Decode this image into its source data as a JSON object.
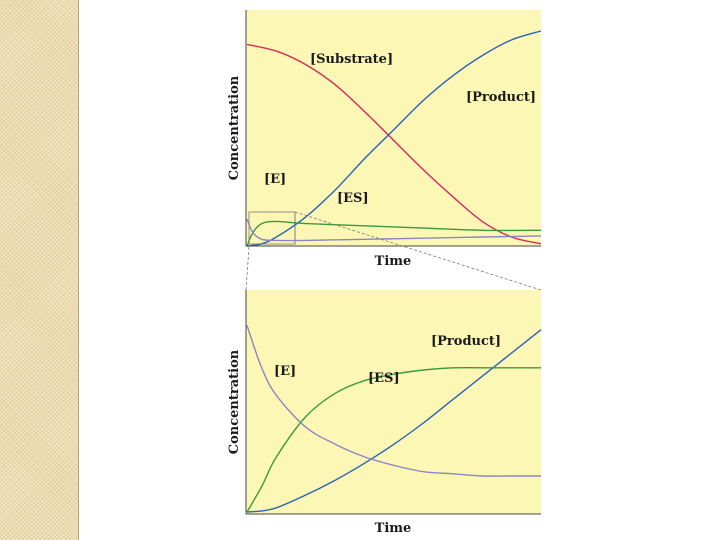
{
  "colors": {
    "panel_bg": "#fdf7b6",
    "substrate": "#d42a5c",
    "product": "#2a62b8",
    "es": "#3a9a3a",
    "e": "#8a86c4",
    "axis": "#444444",
    "strip": "#ecdcae"
  },
  "chart_data": [
    {
      "type": "line",
      "xlabel": "Time",
      "ylabel": "Concentration",
      "series": [
        {
          "name": "[Substrate]",
          "color_key": "substrate",
          "x": [
            0,
            0.1,
            0.2,
            0.3,
            0.4,
            0.5,
            0.6,
            0.7,
            0.8,
            0.9,
            1.0
          ],
          "y": [
            0.9,
            0.87,
            0.81,
            0.72,
            0.6,
            0.47,
            0.34,
            0.22,
            0.11,
            0.04,
            0.01
          ]
        },
        {
          "name": "[Product]",
          "color_key": "product",
          "x": [
            0,
            0.05,
            0.1,
            0.2,
            0.3,
            0.4,
            0.5,
            0.6,
            0.7,
            0.8,
            0.9,
            1.0
          ],
          "y": [
            0.0,
            0.01,
            0.04,
            0.13,
            0.25,
            0.39,
            0.52,
            0.65,
            0.76,
            0.85,
            0.92,
            0.96
          ]
        },
        {
          "name": "[ES]",
          "color_key": "es",
          "x": [
            0,
            0.02,
            0.05,
            0.1,
            0.2,
            0.4,
            0.6,
            0.8,
            1.0
          ],
          "y": [
            0.0,
            0.06,
            0.1,
            0.11,
            0.1,
            0.09,
            0.08,
            0.07,
            0.07
          ]
        },
        {
          "name": "[E]",
          "color_key": "e",
          "x": [
            0,
            0.02,
            0.05,
            0.1,
            0.2,
            0.4,
            0.6,
            0.8,
            1.0
          ],
          "y": [
            0.12,
            0.06,
            0.03,
            0.025,
            0.025,
            0.03,
            0.035,
            0.04,
            0.045
          ]
        }
      ]
    },
    {
      "type": "line",
      "xlabel": "Time",
      "ylabel": "Concentration",
      "series": [
        {
          "name": "[Product]",
          "color_key": "product",
          "x": [
            0,
            0.05,
            0.1,
            0.2,
            0.3,
            0.4,
            0.5,
            0.6,
            0.7,
            0.8,
            0.9,
            1.0
          ],
          "y": [
            0.0,
            0.005,
            0.02,
            0.08,
            0.15,
            0.23,
            0.32,
            0.42,
            0.53,
            0.64,
            0.75,
            0.86
          ]
        },
        {
          "name": "[ES]",
          "color_key": "es",
          "x": [
            0,
            0.05,
            0.1,
            0.2,
            0.3,
            0.4,
            0.5,
            0.6,
            0.7,
            0.8,
            0.9,
            1.0
          ],
          "y": [
            0.0,
            0.12,
            0.26,
            0.45,
            0.56,
            0.62,
            0.65,
            0.67,
            0.68,
            0.68,
            0.68,
            0.68
          ]
        },
        {
          "name": "[E]",
          "color_key": "e",
          "x": [
            0,
            0.05,
            0.1,
            0.2,
            0.3,
            0.4,
            0.5,
            0.6,
            0.7,
            0.8,
            0.9,
            1.0
          ],
          "y": [
            0.88,
            0.68,
            0.55,
            0.4,
            0.32,
            0.26,
            0.22,
            0.19,
            0.18,
            0.17,
            0.17,
            0.17
          ]
        }
      ]
    }
  ]
}
